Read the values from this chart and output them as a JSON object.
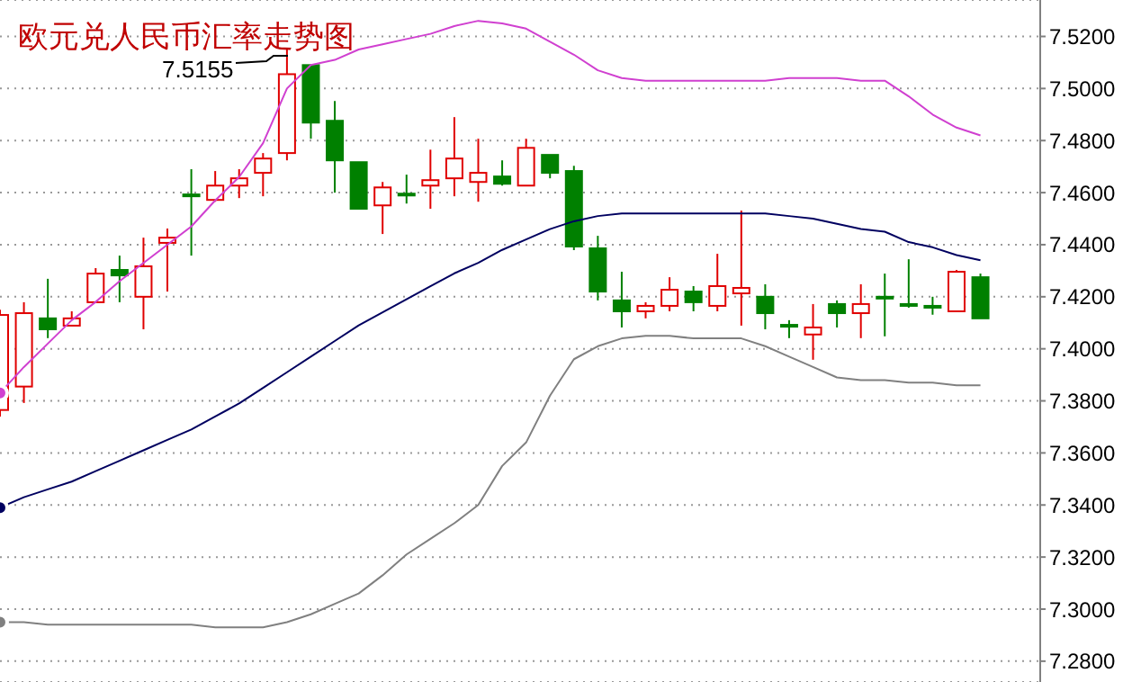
{
  "chart_data": {
    "type": "candlestick",
    "title": "欧元兑人民币汇率走势图",
    "categories": [
      null,
      null,
      null,
      null,
      null,
      null,
      null,
      null,
      null,
      null,
      null,
      null,
      null,
      null,
      null,
      null,
      null,
      null,
      null,
      null,
      null,
      null,
      null,
      null,
      null,
      null,
      null,
      null,
      null,
      null,
      null,
      null,
      null,
      null,
      null,
      null,
      null,
      null,
      null,
      null,
      null,
      null
    ],
    "ohlc": [
      [
        7.3765,
        7.415,
        7.374,
        7.413
      ],
      [
        7.3855,
        7.4179,
        7.3792,
        7.4137
      ],
      [
        7.4117,
        7.4269,
        7.4041,
        7.4075
      ],
      [
        7.4089,
        7.4144,
        7.4089,
        7.4117
      ],
      [
        7.4179,
        7.431,
        7.4179,
        7.4289
      ],
      [
        7.4303,
        7.4358,
        7.4179,
        7.4282
      ],
      [
        7.42,
        7.4427,
        7.4075,
        7.4317
      ],
      [
        7.4407,
        7.4462,
        7.422,
        7.4427
      ],
      [
        7.4593,
        7.469,
        7.4358,
        7.4586
      ],
      [
        7.4572,
        7.4683,
        7.4565,
        7.4627
      ],
      [
        7.4627,
        7.469,
        7.4579,
        7.4655
      ],
      [
        7.4676,
        7.4752,
        7.4586,
        7.4731
      ],
      [
        7.4752,
        7.5155,
        7.4724,
        7.5055
      ],
      [
        7.509,
        7.509,
        7.4807,
        7.4869
      ],
      [
        7.4876,
        7.4952,
        7.46,
        7.4724
      ],
      [
        7.4717,
        7.4717,
        7.4538,
        7.4538
      ],
      [
        7.4551,
        7.4641,
        7.4441,
        7.462
      ],
      [
        7.4596,
        7.4669,
        7.4558,
        7.4589
      ],
      [
        7.4627,
        7.4765,
        7.4538,
        7.4648
      ],
      [
        7.4655,
        7.489,
        7.4586,
        7.4731
      ],
      [
        7.4641,
        7.4807,
        7.4565,
        7.4676
      ],
      [
        7.4662,
        7.4724,
        7.4627,
        7.4634
      ],
      [
        7.4627,
        7.4807,
        7.4627,
        7.4772
      ],
      [
        7.4745,
        7.4745,
        7.4655,
        7.4676
      ],
      [
        7.4683,
        7.4703,
        7.4379,
        7.4393
      ],
      [
        7.4386,
        7.4434,
        7.4186,
        7.422
      ],
      [
        7.4186,
        7.4296,
        7.4082,
        7.4144
      ],
      [
        7.4144,
        7.4179,
        7.4117,
        7.4165
      ],
      [
        7.4165,
        7.4275,
        7.4144,
        7.4227
      ],
      [
        7.422,
        7.4241,
        7.4144,
        7.4179
      ],
      [
        7.4165,
        7.4365,
        7.4144,
        7.4241
      ],
      [
        7.4213,
        7.4531,
        7.4089,
        7.4234
      ],
      [
        7.42,
        7.4248,
        7.4075,
        7.4137
      ],
      [
        7.4092,
        7.411,
        7.4041,
        7.4086
      ],
      [
        7.4055,
        7.4172,
        7.3958,
        7.4082
      ],
      [
        7.4172,
        7.4186,
        7.4082,
        7.4137
      ],
      [
        7.4137,
        7.4248,
        7.4041,
        7.4172
      ],
      [
        7.42,
        7.4289,
        7.4048,
        7.4193
      ],
      [
        7.4172,
        7.4344,
        7.4158,
        7.4165
      ],
      [
        7.4165,
        7.42,
        7.4131,
        7.4158
      ],
      [
        7.4144,
        7.4303,
        7.4144,
        7.4296
      ],
      [
        7.4275,
        7.4289,
        7.4117,
        7.4117
      ]
    ],
    "colors": [
      "#e00000",
      "#e00000",
      "#008000",
      "#e00000",
      "#e00000",
      "#008000",
      "#e00000",
      "#e00000",
      "#008000",
      "#e00000",
      "#e00000",
      "#e00000",
      "#e00000",
      "#008000",
      "#008000",
      "#008000",
      "#e00000",
      "#008000",
      "#e00000",
      "#e00000",
      "#e00000",
      "#008000",
      "#e00000",
      "#008000",
      "#008000",
      "#008000",
      "#008000",
      "#e00000",
      "#e00000",
      "#008000",
      "#e00000",
      "#e00000",
      "#008000",
      "#008000",
      "#e00000",
      "#008000",
      "#e00000",
      "#008000",
      "#008000",
      "#008000",
      "#e00000",
      "#008000"
    ],
    "series": [
      {
        "type": "line",
        "color": "#d040d0",
        "values": [
          7.383,
          7.393,
          7.402,
          7.411,
          7.418,
          7.426,
          7.433,
          7.44,
          7.447,
          7.457,
          7.466,
          7.479,
          7.5,
          7.509,
          7.511,
          7.515,
          7.517,
          7.519,
          7.521,
          7.524,
          7.526,
          7.525,
          7.523,
          7.518,
          7.513,
          7.507,
          7.504,
          7.503,
          7.503,
          7.503,
          7.503,
          7.503,
          7.503,
          7.504,
          7.504,
          7.504,
          7.503,
          7.503,
          7.497,
          7.49,
          7.485,
          7.482
        ]
      },
      {
        "type": "line",
        "color": "#000060",
        "values": [
          7.339,
          7.343,
          7.346,
          7.349,
          7.353,
          7.357,
          7.361,
          7.365,
          7.369,
          7.374,
          7.379,
          7.385,
          7.391,
          7.397,
          7.403,
          7.409,
          7.414,
          7.419,
          7.424,
          7.429,
          7.433,
          7.438,
          7.442,
          7.446,
          7.449,
          7.451,
          7.452,
          7.452,
          7.452,
          7.452,
          7.452,
          7.452,
          7.452,
          7.451,
          7.45,
          7.448,
          7.446,
          7.445,
          7.441,
          7.439,
          7.436,
          7.434
        ]
      },
      {
        "type": "line",
        "color": "#808080",
        "values": [
          7.295,
          7.295,
          7.294,
          7.294,
          7.294,
          7.294,
          7.294,
          7.294,
          7.294,
          7.293,
          7.293,
          7.293,
          7.295,
          7.298,
          7.302,
          7.306,
          7.313,
          7.321,
          7.327,
          7.333,
          7.34,
          7.355,
          7.364,
          7.382,
          7.396,
          7.401,
          7.404,
          7.405,
          7.405,
          7.404,
          7.404,
          7.404,
          7.401,
          7.397,
          7.393,
          7.389,
          7.388,
          7.388,
          7.387,
          7.387,
          7.386,
          7.386
        ]
      }
    ],
    "ylim": [
      7.272,
      7.534
    ],
    "yticks": [
      {
        "value": 7.28,
        "label": "7.2800"
      },
      {
        "value": 7.3,
        "label": "7.3000"
      },
      {
        "value": 7.32,
        "label": "7.3200"
      },
      {
        "value": 7.34,
        "label": "7.3400"
      },
      {
        "value": 7.36,
        "label": "7.3600"
      },
      {
        "value": 7.38,
        "label": "7.3800"
      },
      {
        "value": 7.4,
        "label": "7.4000"
      },
      {
        "value": 7.42,
        "label": "7.4200"
      },
      {
        "value": 7.44,
        "label": "7.4400"
      },
      {
        "value": 7.46,
        "label": "7.4600"
      },
      {
        "value": 7.48,
        "label": "7.4800"
      },
      {
        "value": 7.5,
        "label": "7.5000"
      },
      {
        "value": 7.52,
        "label": "7.5200"
      }
    ],
    "grid": "y",
    "annotations": [
      "7.5155"
    ]
  }
}
